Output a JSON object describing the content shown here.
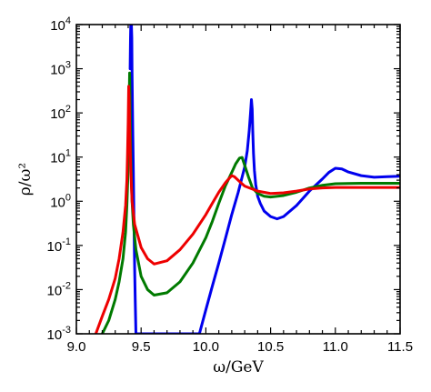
{
  "chart_data": {
    "type": "line",
    "title": "",
    "xlabel": "ω/GeV",
    "ylabel": "ρ/ω²",
    "xlim": [
      9.0,
      11.5
    ],
    "ylim": [
      0.001,
      10000
    ],
    "yscale": "log",
    "grid": false,
    "legend": "none",
    "x_ticks": [
      {
        "value": 9.0,
        "label": "9.0"
      },
      {
        "value": 9.5,
        "label": "9.5"
      },
      {
        "value": 10.0,
        "label": "10.0"
      },
      {
        "value": 10.5,
        "label": "10.5"
      },
      {
        "value": 11.0,
        "label": "11.0"
      },
      {
        "value": 11.5,
        "label": "11.5"
      }
    ],
    "y_ticks": [
      {
        "value": 0.001,
        "base": "10",
        "exp": "-3"
      },
      {
        "value": 0.01,
        "base": "10",
        "exp": "-2"
      },
      {
        "value": 0.1,
        "base": "10",
        "exp": "-1"
      },
      {
        "value": 1,
        "base": "10",
        "exp": "0"
      },
      {
        "value": 10,
        "base": "10",
        "exp": "1"
      },
      {
        "value": 100,
        "base": "10",
        "exp": "2"
      },
      {
        "value": 1000,
        "base": "10",
        "exp": "3"
      },
      {
        "value": 10000,
        "base": "10",
        "exp": "4"
      }
    ],
    "series": [
      {
        "color": "#0000ee",
        "x": [
          9.415,
          9.418,
          9.42,
          9.422,
          9.425,
          9.428,
          9.43,
          9.433,
          9.436,
          9.44,
          9.443,
          9.446,
          9.45,
          9.455,
          9.46,
          9.95,
          10.0,
          10.05,
          10.1,
          10.15,
          10.2,
          10.25,
          10.3,
          10.32,
          10.335,
          10.345,
          10.352,
          10.358,
          10.362,
          10.368,
          10.375,
          10.385,
          10.4,
          10.42,
          10.45,
          10.5,
          10.55,
          10.6,
          10.7,
          10.8,
          10.9,
          10.95,
          11.0,
          11.05,
          11.1,
          11.2,
          11.3,
          11.4,
          11.5
        ],
        "y": [
          1000,
          5000,
          10000,
          10000,
          10000,
          5000,
          800,
          150,
          30,
          5,
          1,
          0.2,
          0.03,
          0.005,
          0.001,
          0.001,
          0.0035,
          0.012,
          0.04,
          0.14,
          0.5,
          1.6,
          6,
          14,
          40,
          100,
          200,
          120,
          40,
          12,
          5,
          2.4,
          1.3,
          0.9,
          0.6,
          0.45,
          0.4,
          0.45,
          0.8,
          1.7,
          3.2,
          4.5,
          5.6,
          5.4,
          4.6,
          3.8,
          3.5,
          3.6,
          3.7
        ]
      },
      {
        "color": "#007a00",
        "x": [
          9.2,
          9.25,
          9.3,
          9.33,
          9.36,
          9.38,
          9.39,
          9.397,
          9.402,
          9.406,
          9.409,
          9.411,
          9.413,
          9.416,
          9.42,
          9.425,
          9.43,
          9.44,
          9.46,
          9.5,
          9.55,
          9.6,
          9.7,
          9.8,
          9.9,
          10.0,
          10.05,
          10.1,
          10.15,
          10.2,
          10.23,
          10.26,
          10.28,
          10.3,
          10.33,
          10.36,
          10.4,
          10.45,
          10.5,
          10.6,
          10.7,
          10.8,
          10.9,
          11.0,
          11.2,
          11.4,
          11.5
        ],
        "y": [
          0.001,
          0.002,
          0.006,
          0.015,
          0.05,
          0.2,
          0.8,
          3,
          15,
          80,
          300,
          800,
          400,
          60,
          12,
          3,
          1,
          0.3,
          0.08,
          0.02,
          0.01,
          0.0075,
          0.0085,
          0.015,
          0.04,
          0.15,
          0.35,
          0.9,
          2.2,
          4.5,
          7,
          9.5,
          9.8,
          6.5,
          3.5,
          2,
          1.5,
          1.3,
          1.25,
          1.35,
          1.6,
          2,
          2.3,
          2.5,
          2.55,
          2.55,
          2.55
        ]
      },
      {
        "color": "#ee0000",
        "x": [
          9.15,
          9.2,
          9.25,
          9.3,
          9.33,
          9.36,
          9.38,
          9.39,
          9.395,
          9.4,
          9.404,
          9.408,
          9.413,
          9.42,
          9.43,
          9.45,
          9.5,
          9.55,
          9.6,
          9.7,
          9.8,
          9.9,
          10.0,
          10.05,
          10.1,
          10.15,
          10.18,
          10.2,
          10.22,
          10.26,
          10.3,
          10.4,
          10.5,
          10.6,
          10.7,
          10.8,
          10.9,
          11.0,
          11.2,
          11.4,
          11.5
        ],
        "y": [
          0.001,
          0.0025,
          0.006,
          0.018,
          0.05,
          0.2,
          0.8,
          3,
          12,
          60,
          400,
          200,
          30,
          5,
          1,
          0.3,
          0.09,
          0.05,
          0.038,
          0.045,
          0.08,
          0.18,
          0.5,
          0.9,
          1.6,
          2.6,
          3.3,
          3.8,
          3.6,
          2.8,
          2.2,
          1.7,
          1.5,
          1.55,
          1.7,
          1.9,
          2,
          2.05,
          2.05,
          2.05,
          2.05
        ]
      }
    ]
  }
}
